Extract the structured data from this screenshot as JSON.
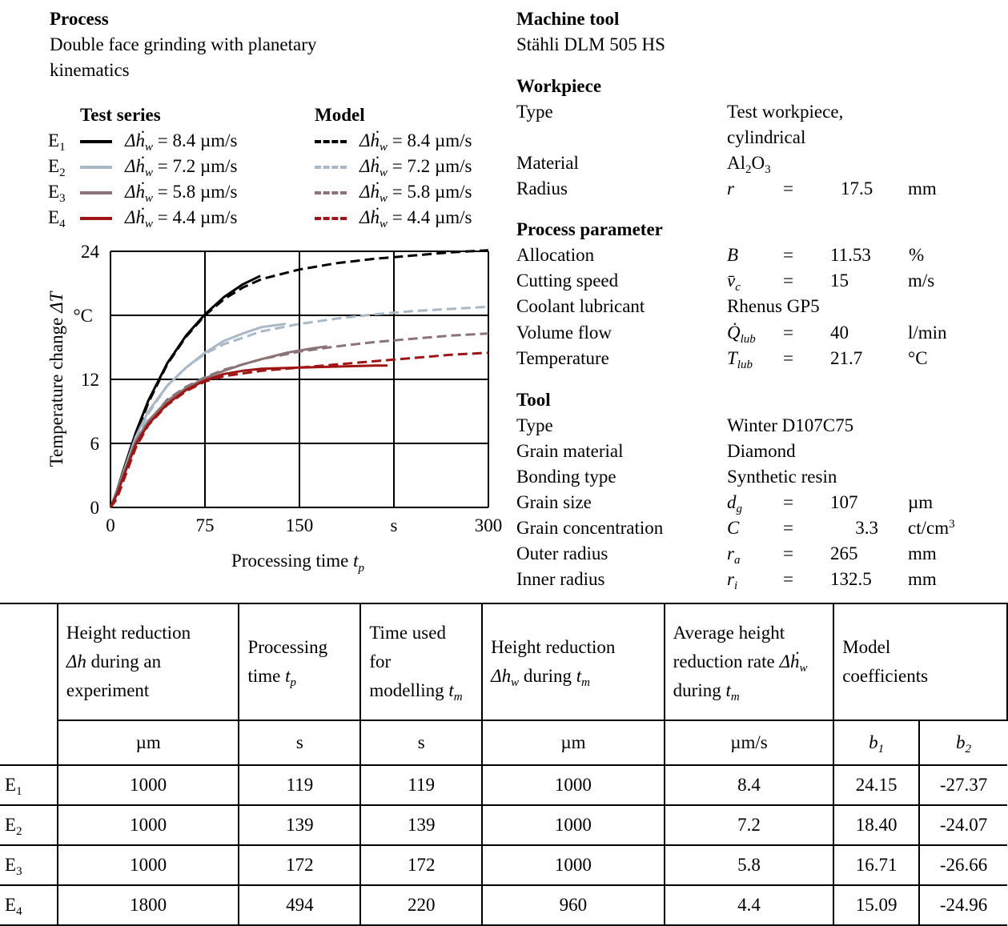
{
  "process": {
    "heading": "Process",
    "line1": "Double face grinding with planetary",
    "line2": "kinematics"
  },
  "legend": {
    "test_heading": "Test series",
    "model_heading": "Model",
    "rows": [
      {
        "label": "E",
        "sub": "1",
        "text": "= 8.4 µm/s",
        "color": "#000000"
      },
      {
        "label": "E",
        "sub": "2",
        "text": "= 7.2 µm/s",
        "color": "#a8b8c6"
      },
      {
        "label": "E",
        "sub": "3",
        "text": "= 5.8 µm/s",
        "color": "#8c7476"
      },
      {
        "label": "E",
        "sub": "4",
        "text": "= 4.4 µm/s",
        "color": "#a01414"
      }
    ]
  },
  "chart_data": {
    "type": "line",
    "xlabel": "Processing time t_p",
    "ylabel": "Temperature change ΔT",
    "y_unit": "°C",
    "x_unit": "s",
    "xlim": [
      0,
      300
    ],
    "ylim": [
      0,
      24
    ],
    "x_ticks": [
      "0",
      "75",
      "150",
      "300"
    ],
    "y_ticks": [
      "0",
      "6",
      "12",
      "24"
    ],
    "grid": true,
    "series": [
      {
        "name": "E1 test",
        "color": "#000000",
        "style": "solid",
        "x": [
          0,
          5,
          10,
          20,
          30,
          45,
          60,
          75,
          90,
          105,
          119
        ],
        "y": [
          0,
          1.5,
          3.4,
          7.0,
          10.0,
          13.5,
          16.1,
          18.1,
          19.7,
          20.9,
          21.7
        ]
      },
      {
        "name": "E1 model",
        "color": "#000000",
        "style": "dashed",
        "x": [
          0,
          5,
          10,
          20,
          30,
          45,
          60,
          75,
          90,
          105,
          120,
          150,
          180,
          210,
          240,
          270,
          300
        ],
        "y": [
          0,
          1.0,
          2.8,
          6.6,
          9.8,
          13.4,
          16.0,
          18.0,
          19.5,
          20.6,
          21.4,
          22.3,
          22.9,
          23.3,
          23.6,
          23.9,
          24.1
        ]
      },
      {
        "name": "E2 test",
        "color": "#a8b8c6",
        "style": "solid",
        "x": [
          0,
          5,
          10,
          20,
          30,
          45,
          60,
          75,
          90,
          105,
          120,
          139
        ],
        "y": [
          0,
          1.4,
          3.2,
          6.6,
          9.0,
          11.4,
          13.1,
          14.5,
          15.6,
          16.3,
          16.9,
          17.2
        ]
      },
      {
        "name": "E2 model",
        "color": "#a8b8c6",
        "style": "dashed",
        "x": [
          0,
          5,
          10,
          20,
          30,
          45,
          60,
          75,
          90,
          120,
          150,
          180,
          210,
          240,
          270,
          300
        ],
        "y": [
          0,
          1.0,
          2.6,
          6.2,
          8.8,
          11.4,
          13.1,
          14.4,
          15.3,
          16.5,
          17.2,
          17.7,
          18.1,
          18.4,
          18.6,
          18.8
        ]
      },
      {
        "name": "E3 test",
        "color": "#8c7476",
        "style": "solid",
        "x": [
          0,
          5,
          10,
          20,
          30,
          45,
          60,
          75,
          90,
          105,
          120,
          140,
          160,
          172
        ],
        "y": [
          0,
          1.3,
          3.0,
          6.2,
          8.1,
          10.0,
          11.2,
          12.1,
          12.8,
          13.4,
          13.9,
          14.5,
          14.9,
          15.1
        ]
      },
      {
        "name": "E3 model",
        "color": "#8c7476",
        "style": "dashed",
        "x": [
          0,
          5,
          10,
          20,
          30,
          45,
          60,
          75,
          90,
          120,
          150,
          180,
          210,
          240,
          270,
          300
        ],
        "y": [
          0,
          0.9,
          2.5,
          5.9,
          8.0,
          10.1,
          11.3,
          12.2,
          12.9,
          13.9,
          14.6,
          15.1,
          15.5,
          15.8,
          16.1,
          16.3
        ]
      },
      {
        "name": "E4 test",
        "color": "#a01414",
        "style": "solid",
        "x": [
          0,
          5,
          10,
          20,
          30,
          45,
          60,
          75,
          90,
          105,
          120,
          150,
          180,
          210,
          220
        ],
        "y": [
          0,
          1.2,
          2.8,
          5.9,
          7.8,
          9.7,
          11.0,
          11.9,
          12.5,
          12.8,
          13.0,
          13.1,
          13.2,
          13.3,
          13.3
        ]
      },
      {
        "name": "E4 model",
        "color": "#a01414",
        "style": "dashed",
        "x": [
          0,
          5,
          10,
          20,
          30,
          45,
          60,
          75,
          90,
          120,
          150,
          180,
          210,
          240,
          270,
          300
        ],
        "y": [
          0,
          0.8,
          2.4,
          5.6,
          7.7,
          9.6,
          10.9,
          11.8,
          12.3,
          12.8,
          13.1,
          13.4,
          13.7,
          14.0,
          14.3,
          14.5
        ]
      }
    ]
  },
  "machine_tool": {
    "heading": "Machine tool",
    "name": "Stähli DLM 505 HS"
  },
  "workpiece": {
    "heading": "Workpiece",
    "type_label": "Type",
    "type_value1": "Test workpiece,",
    "type_value2": "cylindrical",
    "material_label": "Material",
    "material_value": "Al",
    "material_sub1": "2",
    "material_mid": "O",
    "material_sub2": "3",
    "radius_label": "Radius",
    "radius_symbol": "r",
    "radius_eq": "=",
    "radius_value": "17.5",
    "radius_unit": "mm"
  },
  "process_parameter": {
    "heading": "Process parameter",
    "rows": [
      {
        "label": "Allocation",
        "symbol": "B",
        "eq": "=",
        "value": "11.53",
        "unit": "%"
      },
      {
        "label": "Cutting speed",
        "symbol": "v̄",
        "symbol_sub": "c",
        "eq": "=",
        "value": "15",
        "unit": "m/s"
      },
      {
        "label": "Coolant lubricant",
        "symbol": "Rhenus GP5",
        "eq": "",
        "value": "",
        "unit": ""
      },
      {
        "label": "Volume flow",
        "symbol": "Q̇",
        "symbol_sub": "lub",
        "eq": "=",
        "value": "40",
        "unit": "l/min"
      },
      {
        "label": "Temperature",
        "symbol": "T",
        "symbol_sub": "lub",
        "eq": "=",
        "value": "21.7",
        "unit": "°C"
      }
    ]
  },
  "tool": {
    "heading": "Tool",
    "rows": [
      {
        "label": "Type",
        "value": "Winter D107C75"
      },
      {
        "label": "Grain material",
        "value": "Diamond"
      },
      {
        "label": "Bonding type",
        "value": "Synthetic resin"
      },
      {
        "label": "Grain size",
        "symbol": "d",
        "symbol_sub": "g",
        "eq": "=",
        "value": "107",
        "unit": "µm"
      },
      {
        "label": "Grain concentration",
        "symbol": "C",
        "eq": "=",
        "value": "3.3",
        "unit": "ct/cm",
        "unit_sup": "3"
      },
      {
        "label": "Outer radius",
        "symbol": "r",
        "symbol_sub": "a",
        "eq": "=",
        "value": "265",
        "unit": "mm"
      },
      {
        "label": "Inner radius",
        "symbol": "r",
        "symbol_sub": "i",
        "eq": "=",
        "value": "132.5",
        "unit": "mm"
      }
    ]
  },
  "table": {
    "headers": {
      "col1_a": "Height reduction",
      "col1_b": "during an",
      "col1_c": "experiment",
      "col2_a": "Processing",
      "col2_b": "time",
      "col3_a": "Time used",
      "col3_b": "for",
      "col3_c": "modelling",
      "col4_a": "Height reduction",
      "col4_b": "during",
      "col5_a": "Average height",
      "col5_b": "reduction rate",
      "col5_c": "during",
      "col6_a": "Model",
      "col6_b": "coefficients"
    },
    "units": [
      "µm",
      "s",
      "s",
      "µm",
      "µm/s"
    ],
    "b1": "b",
    "b1_sub": "1",
    "b2": "b",
    "b2_sub": "2",
    "rows": [
      {
        "label": "E",
        "sub": "1",
        "cells": [
          "1000",
          "119",
          "119",
          "1000",
          "8.4",
          "24.15",
          "-27.37"
        ]
      },
      {
        "label": "E",
        "sub": "2",
        "cells": [
          "1000",
          "139",
          "139",
          "1000",
          "7.2",
          "18.40",
          "-24.07"
        ]
      },
      {
        "label": "E",
        "sub": "3",
        "cells": [
          "1000",
          "172",
          "172",
          "1000",
          "5.8",
          "16.71",
          "-26.66"
        ]
      },
      {
        "label": "E",
        "sub": "4",
        "cells": [
          "1800",
          "494",
          "220",
          "960",
          "4.4",
          "15.09",
          "-24.96"
        ]
      }
    ]
  }
}
